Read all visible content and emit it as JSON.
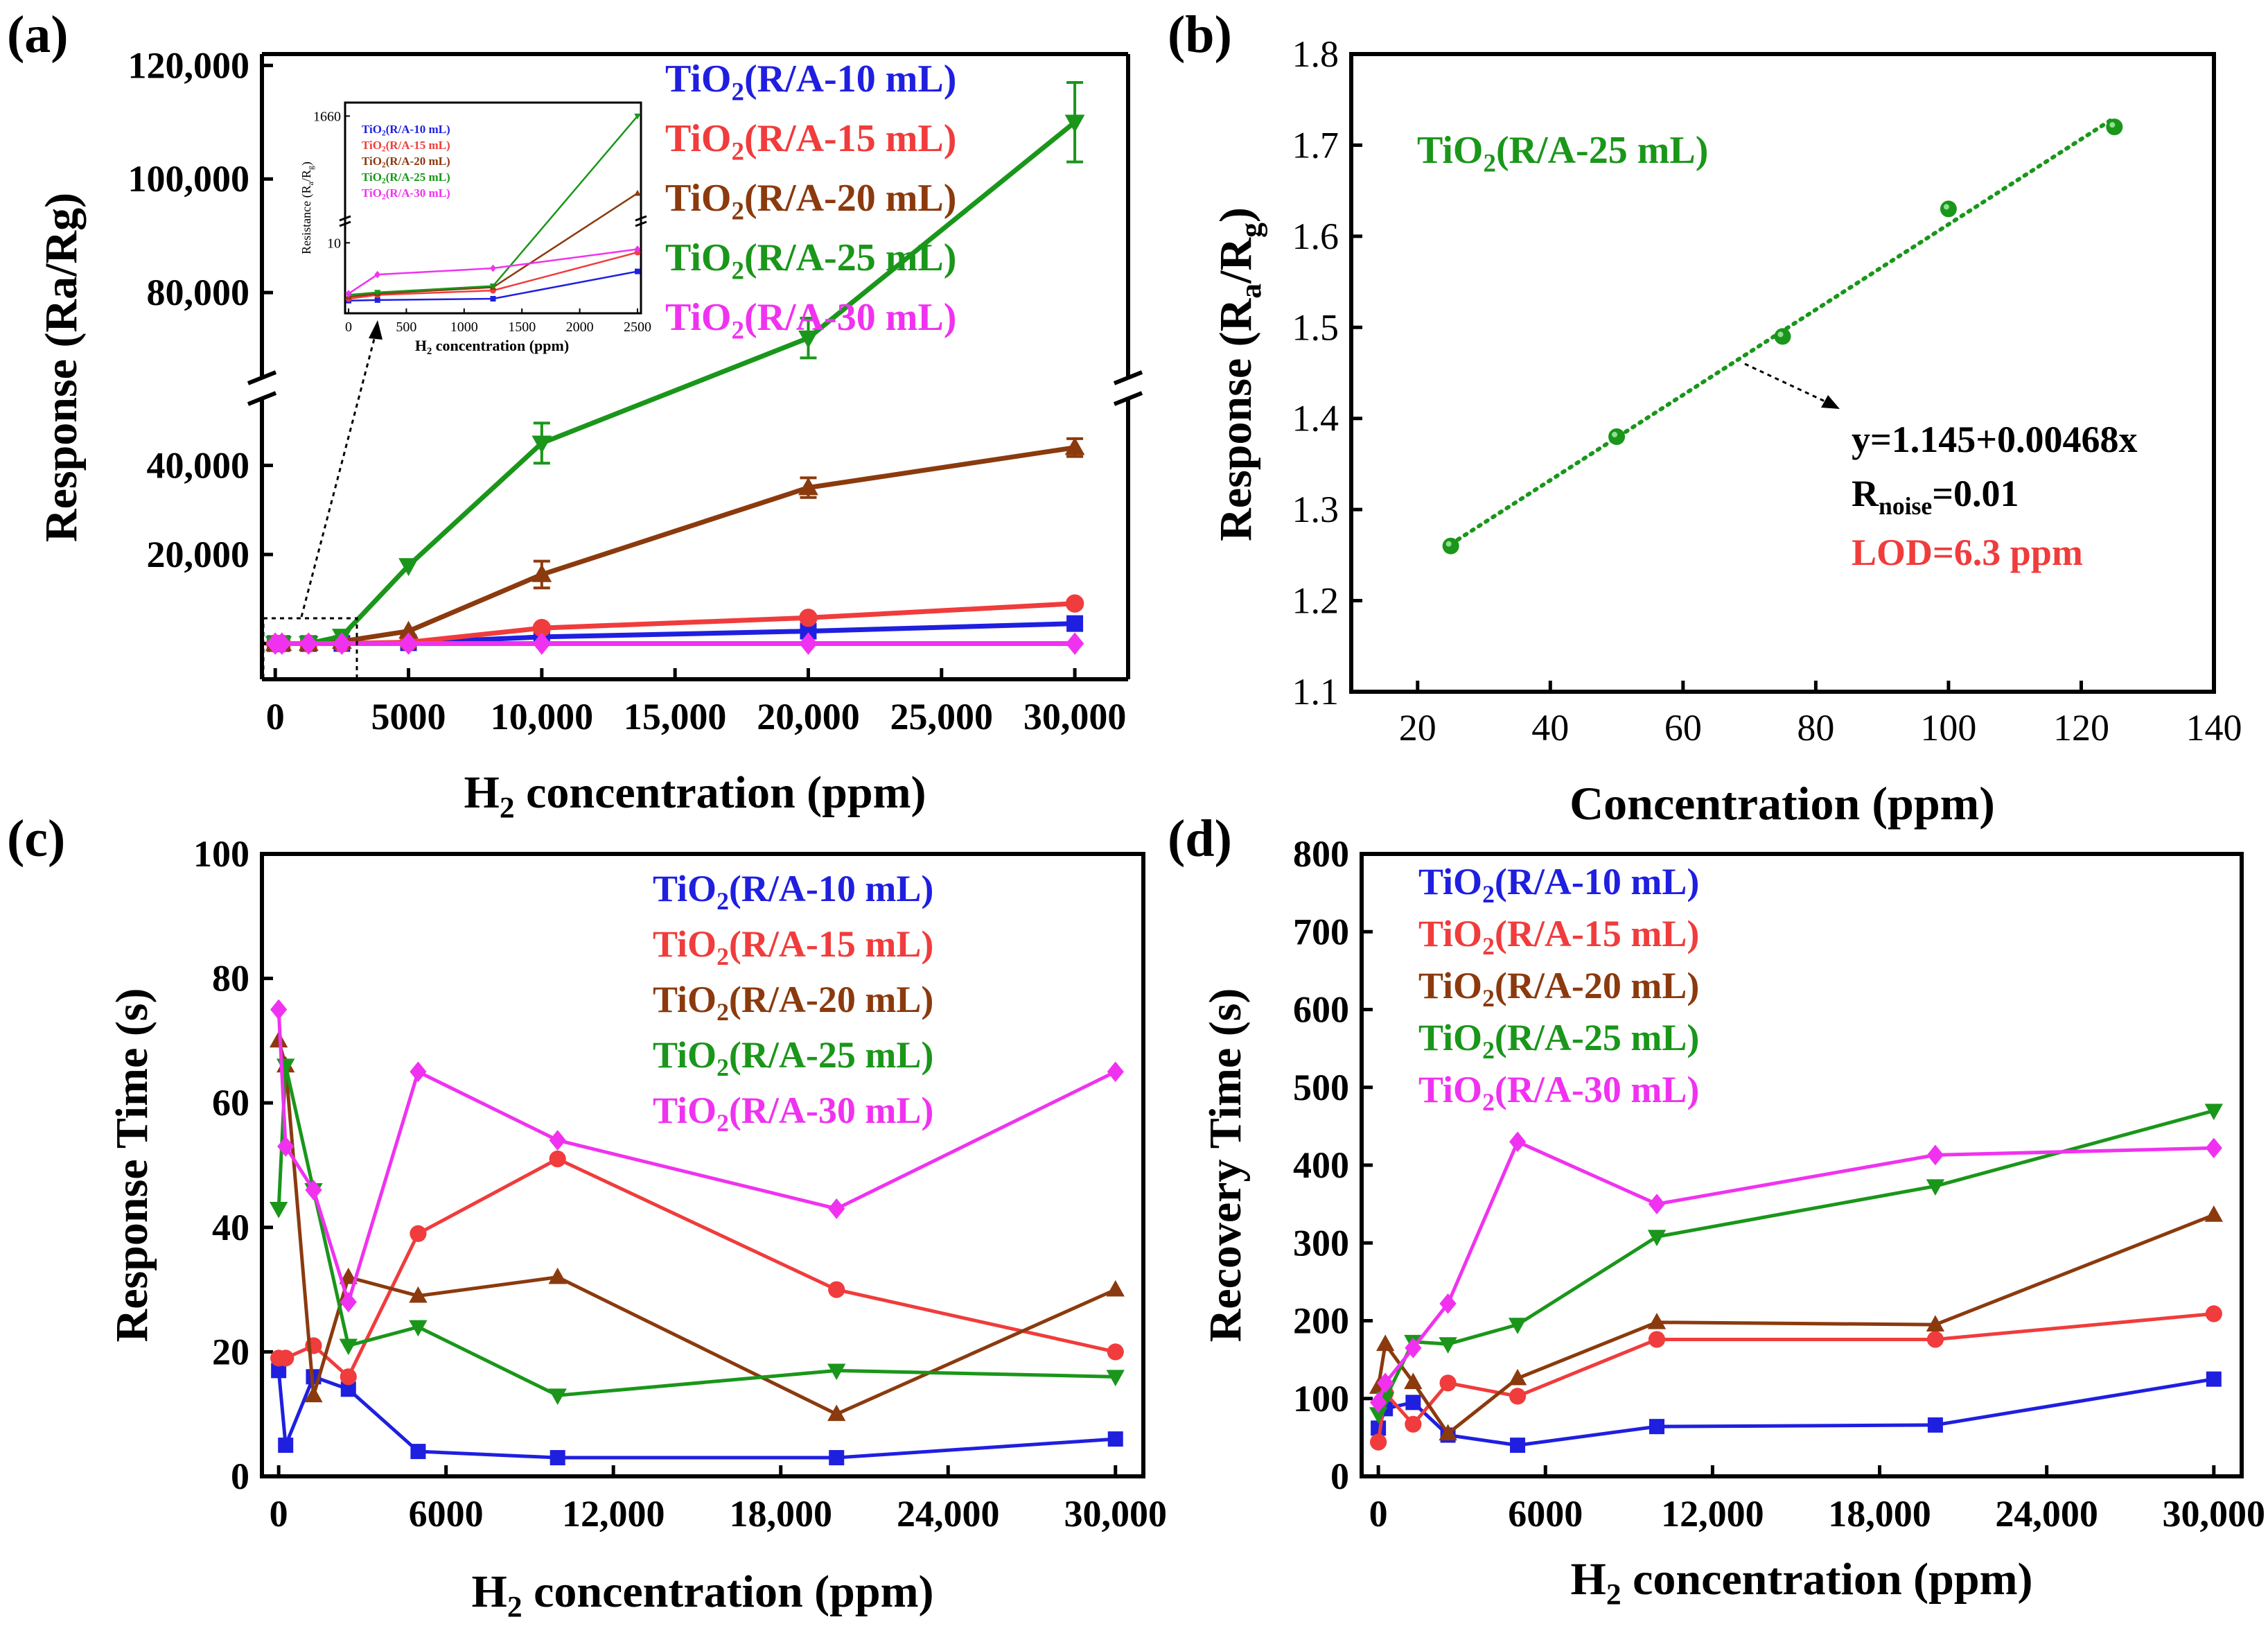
{
  "chart_data": [
    {
      "id": "a",
      "panel_label": "(a)",
      "type": "line",
      "xlabel_main": "H",
      "xlabel_sub": "2",
      "xlabel_rest": " concentration (ppm)",
      "ylabel": "Response (Ra/Rg)",
      "xlim": [
        -500,
        32000
      ],
      "xticks": [
        0,
        5000,
        10000,
        15000,
        20000,
        25000,
        30000
      ],
      "xtick_labels": [
        "0",
        "5000",
        "10,000",
        "15,000",
        "20,000",
        "25,000",
        "30,000"
      ],
      "ylim_lower": [
        -8000,
        55000
      ],
      "ylim_upper": [
        65000,
        122000
      ],
      "yticks_lower": [
        20000,
        40000
      ],
      "ytick_labels_lower": [
        "20,000",
        "40,000"
      ],
      "yticks_upper": [
        80000,
        100000,
        120000
      ],
      "ytick_labels_upper": [
        "80,000",
        "100,000",
        "120,000"
      ],
      "x": [
        0,
        250,
        1250,
        2500,
        5000,
        10000,
        20000,
        30000
      ],
      "series": [
        {
          "name_main": "TiO",
          "name_sub": "2",
          "name_rest": "(R/A-10 mL)",
          "color": "#1f1fe0",
          "marker": "square",
          "values": [
            5,
            8,
            10,
            30,
            200,
            1500,
            2800,
            4500
          ]
        },
        {
          "name_main": "TiO",
          "name_sub": "2",
          "name_rest": "(R/A-15 mL)",
          "color": "#f03c3c",
          "marker": "circle",
          "values": [
            5,
            8,
            12,
            40,
            300,
            3500,
            5800,
            9000
          ]
        },
        {
          "name_main": "TiO",
          "name_sub": "2",
          "name_rest": "(R/A-20 mL)",
          "color": "#8b3a0e",
          "marker": "triangle-up",
          "values": [
            5,
            10,
            15,
            500,
            2800,
            15500,
            35000,
            44000
          ]
        },
        {
          "name_main": "TiO",
          "name_sub": "2",
          "name_rest": "(R/A-25 mL)",
          "color": "#1a961a",
          "marker": "triangle-down",
          "values": [
            5,
            10,
            20,
            1660,
            17500,
            45000,
            72000,
            110000
          ]
        },
        {
          "name_main": "TiO",
          "name_sub": "2",
          "name_rest": "(R/A-30 mL)",
          "color": "#f032f0",
          "marker": "diamond",
          "values": [
            5,
            5,
            6,
            7,
            8,
            8,
            9,
            9
          ]
        }
      ],
      "inset": {
        "ylabel": "Resistance (R",
        "ylabel_sub": "a",
        "ylabel_mid": "/R",
        "ylabel_sub2": "g",
        "ylabel_end": ")",
        "xlabel_main": "H",
        "xlabel_sub": "2",
        "xlabel_rest": " concentration (ppm)",
        "xticks": [
          0,
          500,
          1000,
          1500,
          2000,
          2500
        ],
        "xtick_labels": [
          "0",
          "500",
          "1000",
          "1500",
          "2000",
          "2500"
        ],
        "ytick_labels": [
          "10",
          "1660"
        ],
        "x": [
          0,
          250,
          1250,
          2500
        ],
        "series_values": [
          [
            0.9,
            1.0,
            1.2,
            5.5
          ],
          [
            1.2,
            1.8,
            2.5,
            8.5
          ],
          [
            1.5,
            2.0,
            3.0,
            1060
          ],
          [
            1.8,
            2.2,
            3.2,
            1660
          ],
          [
            2.0,
            5.0,
            6.0,
            9.0
          ]
        ]
      }
    },
    {
      "id": "b",
      "panel_label": "(b)",
      "type": "scatter",
      "xlabel": "Concentration (ppm)",
      "ylabel_main": "Response (R",
      "ylabel_sub": "a",
      "ylabel_mid": "/R",
      "ylabel_sub2": "g",
      "ylabel_end": ")",
      "xlim": [
        10,
        140
      ],
      "ylim": [
        1.1,
        1.8
      ],
      "xticks": [
        20,
        40,
        60,
        80,
        100,
        120,
        140
      ],
      "xtick_labels": [
        "20",
        "40",
        "60",
        "80",
        "100",
        "120",
        "140"
      ],
      "yticks": [
        1.1,
        1.2,
        1.3,
        1.4,
        1.5,
        1.6,
        1.7,
        1.8
      ],
      "ytick_labels": [
        "1.1",
        "1.2",
        "1.3",
        "1.4",
        "1.5",
        "1.6",
        "1.7",
        "1.8"
      ],
      "x": [
        25,
        50,
        75,
        100,
        125
      ],
      "values": [
        1.26,
        1.38,
        1.49,
        1.63,
        1.72
      ],
      "fit_intercept": 1.145,
      "fit_slope": 0.00468,
      "series_label_main": "TiO",
      "series_label_sub": "2",
      "series_label_rest": "(R/A-25 mL)",
      "color": "#1a961a",
      "annotation_equation": "y=1.145+0.00468x",
      "annotation_noise_main": "R",
      "annotation_noise_sub": "noise",
      "annotation_noise_rest": "=0.01",
      "annotation_lod": "LOD=6.3 ppm",
      "lod_color": "#f03c3c"
    },
    {
      "id": "c",
      "panel_label": "(c)",
      "type": "line",
      "xlabel_main": "H",
      "xlabel_sub": "2",
      "xlabel_rest": " concentration (ppm)",
      "ylabel": "Response Time (s)",
      "xlim": [
        -600,
        31000
      ],
      "ylim": [
        0,
        100
      ],
      "xticks": [
        0,
        6000,
        12000,
        18000,
        24000,
        30000
      ],
      "xtick_labels": [
        "0",
        "6000",
        "12,000",
        "18,000",
        "24,000",
        "30,000"
      ],
      "yticks": [
        0,
        20,
        40,
        60,
        80,
        100
      ],
      "ytick_labels": [
        "0",
        "20",
        "40",
        "60",
        "80",
        "100"
      ],
      "x": [
        0,
        250,
        1250,
        2500,
        5000,
        10000,
        20000,
        30000
      ],
      "series": [
        {
          "name_main": "TiO",
          "name_sub": "2",
          "name_rest": "(R/A-10 mL)",
          "color": "#1f1fe0",
          "marker": "square",
          "values": [
            17,
            5,
            16,
            14,
            4,
            3,
            3,
            6
          ]
        },
        {
          "name_main": "TiO",
          "name_sub": "2",
          "name_rest": "(R/A-15 mL)",
          "color": "#f03c3c",
          "marker": "circle",
          "values": [
            19,
            19,
            21,
            16,
            39,
            51,
            30,
            20
          ]
        },
        {
          "name_main": "TiO",
          "name_sub": "2",
          "name_rest": "(R/A-20 mL)",
          "color": "#8b3a0e",
          "marker": "triangle-up",
          "values": [
            70,
            66,
            13,
            32,
            29,
            32,
            10,
            30
          ]
        },
        {
          "name_main": "TiO",
          "name_sub": "2",
          "name_rest": "(R/A-25 mL)",
          "color": "#1a961a",
          "marker": "triangle-down",
          "values": [
            43,
            66,
            46,
            21,
            24,
            13,
            17,
            16
          ]
        },
        {
          "name_main": "TiO",
          "name_sub": "2",
          "name_rest": "(R/A-30 mL)",
          "color": "#f032f0",
          "marker": "diamond",
          "values": [
            75,
            53,
            46,
            28,
            65,
            54,
            43,
            65
          ]
        }
      ]
    },
    {
      "id": "d",
      "panel_label": "(d)",
      "type": "line",
      "xlabel_main": "H",
      "xlabel_sub": "2",
      "xlabel_rest": " concentration (ppm)",
      "ylabel": "Recovery Time (s)",
      "xlim": [
        -600,
        31000
      ],
      "ylim": [
        0,
        800
      ],
      "xticks": [
        0,
        6000,
        12000,
        18000,
        24000,
        30000
      ],
      "xtick_labels": [
        "0",
        "6000",
        "12,000",
        "18,000",
        "24,000",
        "30,000"
      ],
      "yticks": [
        0,
        100,
        200,
        300,
        400,
        500,
        600,
        700,
        800
      ],
      "ytick_labels": [
        "0",
        "100",
        "200",
        "300",
        "400",
        "500",
        "600",
        "700",
        "800"
      ],
      "x": [
        0,
        250,
        1250,
        2500,
        5000,
        10000,
        20000,
        30000
      ],
      "series": [
        {
          "name_main": "TiO",
          "name_sub": "2",
          "name_rest": "(R/A-10 mL)",
          "color": "#1f1fe0",
          "marker": "square",
          "values": [
            62,
            87,
            95,
            53,
            40,
            64,
            66,
            125
          ]
        },
        {
          "name_main": "TiO",
          "name_sub": "2",
          "name_rest": "(R/A-15 mL)",
          "color": "#f03c3c",
          "marker": "circle",
          "values": [
            44,
            107,
            67,
            120,
            103,
            176,
            176,
            209
          ]
        },
        {
          "name_main": "TiO",
          "name_sub": "2",
          "name_rest": "(R/A-20 mL)",
          "color": "#8b3a0e",
          "marker": "triangle-up",
          "values": [
            115,
            170,
            121,
            55,
            126,
            198,
            195,
            336
          ]
        },
        {
          "name_main": "TiO",
          "name_sub": "2",
          "name_rest": "(R/A-25 mL)",
          "color": "#1a961a",
          "marker": "triangle-down",
          "values": [
            80,
            100,
            173,
            170,
            195,
            308,
            373,
            470
          ]
        },
        {
          "name_main": "TiO",
          "name_sub": "2",
          "name_rest": "(R/A-30 mL)",
          "color": "#f032f0",
          "marker": "diamond",
          "values": [
            95,
            120,
            165,
            222,
            430,
            350,
            413,
            422
          ]
        }
      ]
    }
  ]
}
